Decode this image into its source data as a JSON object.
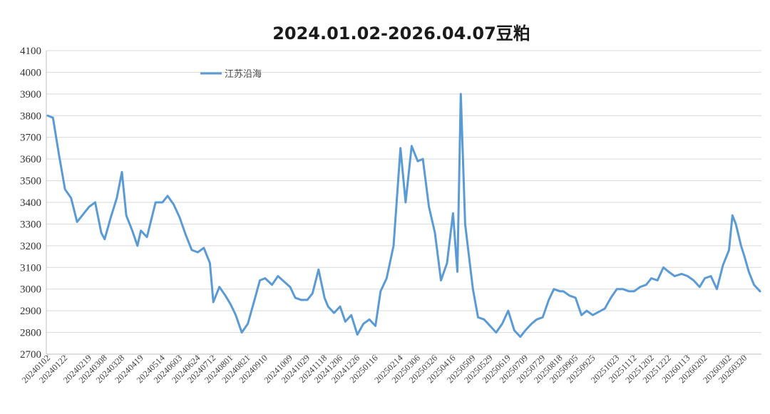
{
  "chart_data": {
    "type": "line",
    "title": "2024.01.02-2026.04.07豆粕",
    "xlabel": "",
    "ylabel": "",
    "ylim": [
      2700,
      4100
    ],
    "yticks": [
      2700,
      2800,
      2900,
      3000,
      3100,
      3200,
      3300,
      3400,
      3500,
      3600,
      3700,
      3800,
      3900,
      4000,
      4100
    ],
    "grid": true,
    "legend_position": "top-left",
    "line_color": "#5b9bd5",
    "x_tick_labels": [
      "20240102",
      "20240122",
      "20240219",
      "20240308",
      "20240328",
      "20240419",
      "20240514",
      "20240603",
      "20240624",
      "20240712",
      "20240801",
      "20240821",
      "20240910",
      "20241009",
      "20241029",
      "20241118",
      "20241206",
      "20241226",
      "20250116",
      "20250214",
      "20250306",
      "20250326",
      "20250416",
      "20250509",
      "20250529",
      "20250619",
      "20250709",
      "20250729",
      "20250818",
      "20250905",
      "20250925",
      "20251023",
      "20251112",
      "20251202",
      "20251222",
      "20260113",
      "20260202",
      "20260302",
      "20260320"
    ],
    "series": [
      {
        "name": "江苏沿海",
        "x": [
          "20240102",
          "20240108",
          "20240115",
          "20240122",
          "20240129",
          "20240205",
          "20240219",
          "20240226",
          "20240304",
          "20240308",
          "20240315",
          "20240322",
          "20240328",
          "20240402",
          "20240409",
          "20240415",
          "20240419",
          "20240426",
          "20240506",
          "20240514",
          "20240520",
          "20240527",
          "20240603",
          "20240610",
          "20240617",
          "20240624",
          "20240701",
          "20240708",
          "20240712",
          "20240719",
          "20240726",
          "20240801",
          "20240807",
          "20240814",
          "20240821",
          "20240828",
          "20240904",
          "20240910",
          "20240918",
          "20240925",
          "20241009",
          "20241015",
          "20241022",
          "20241029",
          "20241104",
          "20241111",
          "20241118",
          "20241122",
          "20241129",
          "20241206",
          "20241212",
          "20241219",
          "20241226",
          "20250102",
          "20250109",
          "20250116",
          "20250122",
          "20250129",
          "20250206",
          "20250214",
          "20250220",
          "20250227",
          "20250306",
          "20250312",
          "20250319",
          "20250326",
          "20250402",
          "20250409",
          "20250416",
          "20250421",
          "20250425",
          "20250430",
          "20250509",
          "20250515",
          "20250522",
          "20250529",
          "20250605",
          "20250612",
          "20250619",
          "20250626",
          "20250703",
          "20250709",
          "20250716",
          "20250722",
          "20250729",
          "20250805",
          "20250811",
          "20250818",
          "20250822",
          "20250829",
          "20250905",
          "20250912",
          "20250918",
          "20250925",
          "20251009",
          "20251016",
          "20251023",
          "20251030",
          "20251106",
          "20251112",
          "20251119",
          "20251126",
          "20251202",
          "20251209",
          "20251216",
          "20251222",
          "20251229",
          "20260106",
          "20260113",
          "20260120",
          "20260127",
          "20260202",
          "20260209",
          "20260216",
          "20260223",
          "20260302",
          "20260306",
          "20260310",
          "20260316",
          "20260320",
          "20260325",
          "20260331",
          "20260407"
        ],
        "values": [
          3800,
          3790,
          3620,
          3460,
          3420,
          3310,
          3380,
          3400,
          3260,
          3230,
          3330,
          3420,
          3540,
          3340,
          3270,
          3200,
          3270,
          3240,
          3400,
          3400,
          3430,
          3390,
          3330,
          3250,
          3180,
          3170,
          3190,
          3120,
          2940,
          3010,
          2970,
          2930,
          2880,
          2800,
          2840,
          2940,
          3040,
          3050,
          3020,
          3060,
          3010,
          2960,
          2950,
          2950,
          2980,
          3090,
          2960,
          2920,
          2890,
          2920,
          2850,
          2880,
          2790,
          2840,
          2860,
          2830,
          2990,
          3050,
          3200,
          3650,
          3400,
          3660,
          3590,
          3600,
          3380,
          3260,
          3040,
          3120,
          3350,
          3080,
          3900,
          3300,
          3000,
          2870,
          2860,
          2830,
          2800,
          2840,
          2900,
          2810,
          2780,
          2810,
          2840,
          2860,
          2870,
          2950,
          3000,
          2990,
          2990,
          2970,
          2960,
          2880,
          2900,
          2880,
          2910,
          2960,
          3000,
          3000,
          2990,
          2990,
          3010,
          3020,
          3050,
          3040,
          3100,
          3080,
          3060,
          3070,
          3060,
          3040,
          3010,
          3050,
          3060,
          3000,
          3110,
          3180,
          3340,
          3300,
          3200,
          3150,
          3080,
          3020,
          2990
        ]
      }
    ]
  }
}
